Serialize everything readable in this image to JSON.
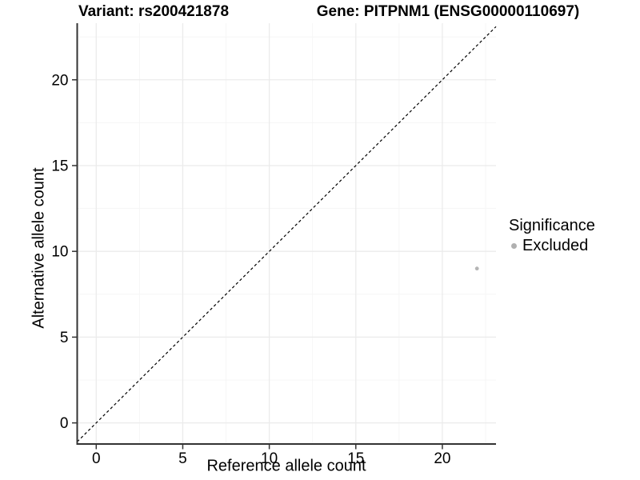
{
  "titles": {
    "variant": "Variant: rs200421878",
    "gene": "Gene: PITPNM1 (ENSG00000110697)"
  },
  "chart_data": {
    "type": "scatter",
    "xlabel": "Reference allele count",
    "ylabel": "Alternative allele count",
    "x_ticks": [
      0,
      5,
      10,
      15,
      20
    ],
    "y_ticks": [
      0,
      5,
      10,
      15,
      20
    ],
    "xlim": [
      -1.1,
      23.1
    ],
    "ylim": [
      -1.23,
      23.3
    ],
    "grid": {
      "major": true,
      "minor": true
    },
    "points": [
      {
        "x": 22,
        "y": 9,
        "significance": "Excluded"
      }
    ],
    "reference_line": {
      "type": "identity",
      "equation": "y = x",
      "style": "dashed",
      "color": "#000000"
    },
    "legend": {
      "title": "Significance",
      "position": "right",
      "items": [
        {
          "label": "Excluded",
          "color": "#b0b0b0"
        }
      ]
    },
    "colors": {
      "point": "#b5b5b5",
      "grid_major": "#ebebeb",
      "grid_minor": "#f5f5f5",
      "axis_line": "#333333",
      "tick_text": "#000000"
    }
  }
}
